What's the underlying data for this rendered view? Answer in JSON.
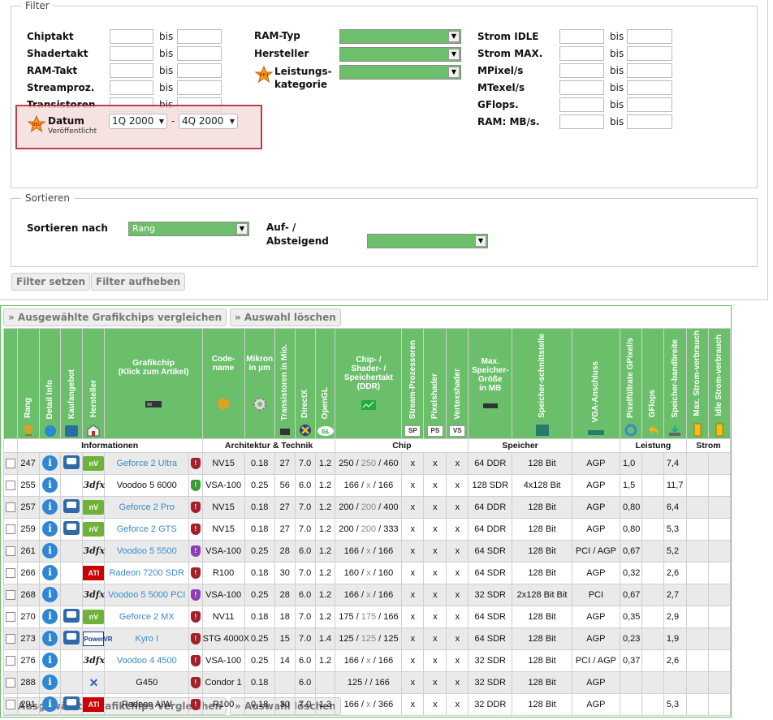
{
  "filter": {
    "legend": "Filter",
    "left": [
      {
        "label": "Chiptakt",
        "bis": "bis"
      },
      {
        "label": "Shadertakt",
        "bis": "bis"
      },
      {
        "label": "RAM-Takt",
        "bis": "bis"
      },
      {
        "label": "Streamproz.",
        "bis": "bis"
      },
      {
        "label": "Transistoren",
        "bis": "bis"
      }
    ],
    "datum": {
      "label": "Datum",
      "sub": "Veröffentlicht",
      "from": "1Q 2000",
      "sep": "-",
      "to": "4Q 2000"
    },
    "mid": {
      "ram_typ": "RAM-Typ",
      "hersteller": "Hersteller",
      "leistung1": "Leistungs-",
      "leistung2": "kategorie"
    },
    "right": [
      {
        "label": "Strom IDLE",
        "bis": "bis"
      },
      {
        "label": "Strom MAX.",
        "bis": "bis"
      },
      {
        "label": "MPixel/s",
        "bis": "bis"
      },
      {
        "label": "MTexel/s",
        "bis": "bis"
      },
      {
        "label": "GFlops.",
        "bis": "bis"
      },
      {
        "label": "RAM: MB/s.",
        "bis": "bis"
      }
    ]
  },
  "sort": {
    "legend": "Sortieren",
    "label": "Sortieren nach",
    "value": "Rang",
    "dir1": "Auf- /",
    "dir2": "Absteigend"
  },
  "buttons": {
    "set": "Filter setzen",
    "reset": "Filter aufheben",
    "compare": "» Ausgewählte Grafikchips vergleichen",
    "clear": "» Auswahl löschen"
  },
  "colors": {
    "green": "#6bbf6a",
    "info_blue": "#2f86d3",
    "link": "#3a8cc8",
    "date_box": "#b0202a"
  },
  "headers": {
    "rang": "Rang",
    "detail": "Detail Info",
    "kauf": "Kaufangebot",
    "hersteller": "Hersteller",
    "chip1": "Grafikchip",
    "chip2": "(Klick zum Artikel)",
    "code1": "Code-",
    "code2": "name",
    "mikron1": "Mikron",
    "mikron2": "in µm",
    "trans": "Transistoren in Mio.",
    "dx": "DirectX",
    "ogl": "OpenGL",
    "shd1": "Chip- /",
    "shd2": "Shader- /",
    "shd3": "Speichertakt",
    "shd4": "(DDR)",
    "sp": "Stream-Prozessoren",
    "ps": "Pixelshader",
    "vs": "Vertexshader",
    "max1": "Max.",
    "max2": "Speicher-",
    "max3": "Größe",
    "max4": "in MB",
    "si": "Speicher-schnittstelle",
    "vga": "VGA-Anschluss",
    "pix": "Pixelfüllrate GPixel/s",
    "gfl": "GFlops",
    "sbw": "Speicher-bandbreite",
    "smax": "Max. Strom-verbrauch",
    "sidle": "Idle Strom-verbrauch",
    "sp_badge": "SP",
    "ps_badge": "PS",
    "vs_badge": "VS"
  },
  "groups": {
    "info": "Informationen",
    "arch": "Architektur & Technik",
    "chip": "Chip",
    "spe": "Speicher",
    "lei": "Leistung",
    "str": "Strom"
  },
  "rows": [
    {
      "rank": "247",
      "cart": true,
      "mfr": "nvidia",
      "name": "Geforce 2 Ultra",
      "link": true,
      "sh": "r",
      "code": "NV15",
      "mic": "0.18",
      "tr": "27",
      "dx": "7.0",
      "ogl": "1.2",
      "c": "250",
      "s": "250",
      "m": "460",
      "sp": "x",
      "ps": "x",
      "vs": "x",
      "mem": "64 DDR",
      "bus": "128 Bit",
      "vga": "AGP",
      "pix": "1,0",
      "gfl": "",
      "bw": "7,4"
    },
    {
      "rank": "255",
      "cart": false,
      "mfr": "3dfx",
      "name": "Voodoo 5 6000",
      "link": false,
      "sh": "g",
      "code": "VSA-100",
      "mic": "0.25",
      "tr": "56",
      "dx": "6.0",
      "ogl": "1.2",
      "c": "166",
      "s": "x",
      "m": "166",
      "sp": "x",
      "ps": "x",
      "vs": "x",
      "mem": "128 SDR",
      "bus": "4x128 Bit",
      "vga": "AGP",
      "pix": "1,5",
      "gfl": "",
      "bw": "11,7"
    },
    {
      "rank": "257",
      "cart": true,
      "mfr": "nvidia",
      "name": "Geforce 2 Pro",
      "link": true,
      "sh": "r",
      "code": "NV15",
      "mic": "0.18",
      "tr": "27",
      "dx": "7.0",
      "ogl": "1.2",
      "c": "200",
      "s": "200",
      "m": "400",
      "sp": "x",
      "ps": "x",
      "vs": "x",
      "mem": "64 DDR",
      "bus": "128 Bit",
      "vga": "AGP",
      "pix": "0,80",
      "gfl": "",
      "bw": "6,4"
    },
    {
      "rank": "259",
      "cart": true,
      "mfr": "nvidia",
      "name": "Geforce 2 GTS",
      "link": true,
      "sh": "r",
      "code": "NV15",
      "mic": "0.18",
      "tr": "27",
      "dx": "7.0",
      "ogl": "1.2",
      "c": "200",
      "s": "200",
      "m": "333",
      "sp": "x",
      "ps": "x",
      "vs": "x",
      "mem": "64 DDR",
      "bus": "128 Bit",
      "vga": "AGP",
      "pix": "0,80",
      "gfl": "",
      "bw": "5,3"
    },
    {
      "rank": "261",
      "cart": false,
      "mfr": "3dfx",
      "name": "Voodoo 5 5500",
      "link": true,
      "sh": "p",
      "code": "VSA-100",
      "mic": "0.25",
      "tr": "28",
      "dx": "6.0",
      "ogl": "1.2",
      "c": "166",
      "s": "x",
      "m": "166",
      "sp": "x",
      "ps": "x",
      "vs": "x",
      "mem": "64 SDR",
      "bus": "128 Bit",
      "vga": "PCI / AGP",
      "pix": "0,67",
      "gfl": "",
      "bw": "5,2"
    },
    {
      "rank": "266",
      "cart": false,
      "mfr": "ati",
      "name": "Radeon 7200 SDR",
      "link": true,
      "sh": "r",
      "code": "R100",
      "mic": "0.18",
      "tr": "30",
      "dx": "7.0",
      "ogl": "1.2",
      "c": "160",
      "s": "x",
      "m": "160",
      "sp": "x",
      "ps": "x",
      "vs": "x",
      "mem": "64 SDR",
      "bus": "128 Bit",
      "vga": "AGP",
      "pix": "0,32",
      "gfl": "",
      "bw": "2,6"
    },
    {
      "rank": "268",
      "cart": false,
      "mfr": "3dfx",
      "name": "Voodoo 5 5000 PCI",
      "link": true,
      "sh": "p",
      "code": "VSA-100",
      "mic": "0.25",
      "tr": "28",
      "dx": "6.0",
      "ogl": "1.2",
      "c": "166",
      "s": "x",
      "m": "166",
      "sp": "x",
      "ps": "x",
      "vs": "x",
      "mem": "32 SDR",
      "bus": "2x128 Bit Bit",
      "vga": "PCI",
      "pix": "0,67",
      "gfl": "",
      "bw": "2,7"
    },
    {
      "rank": "270",
      "cart": true,
      "mfr": "nvidia",
      "name": "Geforce 2 MX",
      "link": true,
      "sh": "r",
      "code": "NV11",
      "mic": "0.18",
      "tr": "18",
      "dx": "7.0",
      "ogl": "1.2",
      "c": "175",
      "s": "175",
      "m": "166",
      "sp": "x",
      "ps": "x",
      "vs": "x",
      "mem": "64 SDR",
      "bus": "128 Bit",
      "vga": "AGP",
      "pix": "0,35",
      "gfl": "",
      "bw": "2,9"
    },
    {
      "rank": "273",
      "cart": true,
      "mfr": "kyro",
      "name": "Kyro I",
      "link": true,
      "sh": "r",
      "code": "STG 4000X",
      "mic": "0.25",
      "tr": "15",
      "dx": "7.0",
      "ogl": "1.4",
      "c": "125",
      "s": "125",
      "m": "125",
      "sp": "x",
      "ps": "x",
      "vs": "x",
      "mem": "64 SDR",
      "bus": "128 Bit",
      "vga": "AGP",
      "pix": "0,23",
      "gfl": "",
      "bw": "1,9"
    },
    {
      "rank": "276",
      "cart": false,
      "mfr": "3dfx",
      "name": "Voodoo 4 4500",
      "link": true,
      "sh": "r",
      "code": "VSA-100",
      "mic": "0.25",
      "tr": "14",
      "dx": "6.0",
      "ogl": "1.2",
      "c": "166",
      "s": "x",
      "m": "166",
      "sp": "x",
      "ps": "x",
      "vs": "x",
      "mem": "32 SDR",
      "bus": "128 Bit",
      "vga": "PCI / AGP",
      "pix": "0,37",
      "gfl": "",
      "bw": "2,6"
    },
    {
      "rank": "288",
      "cart": false,
      "mfr": "matrox",
      "name": "G450",
      "link": false,
      "sh": "r",
      "code": "Condor 1",
      "mic": "0.18",
      "tr": "",
      "dx": "6.0",
      "ogl": "",
      "c": "125",
      "s": "",
      "m": "166",
      "sp": "x",
      "ps": "x",
      "vs": "x",
      "mem": "32 SDR",
      "bus": "128 Bit",
      "vga": "AGP",
      "pix": "",
      "gfl": "",
      "bw": ""
    },
    {
      "rank": "291",
      "cart": true,
      "mfr": "ati",
      "name": "Radeon AIW",
      "link": false,
      "sh": "r",
      "code": "R100",
      "mic": "0.18",
      "tr": "30",
      "dx": "7.0",
      "ogl": "1.3",
      "c": "166",
      "s": "x",
      "m": "366",
      "sp": "x",
      "ps": "x",
      "vs": "x",
      "mem": "32 DDR",
      "bus": "128 Bit",
      "vga": "AGP",
      "pix": "",
      "gfl": "",
      "bw": "5,3"
    }
  ],
  "mfr_text": {
    "nvidia": "nV",
    "3dfx": "3dfx",
    "ati": "ATI",
    "kyro": "PowerVR",
    "matrox": "✕"
  }
}
